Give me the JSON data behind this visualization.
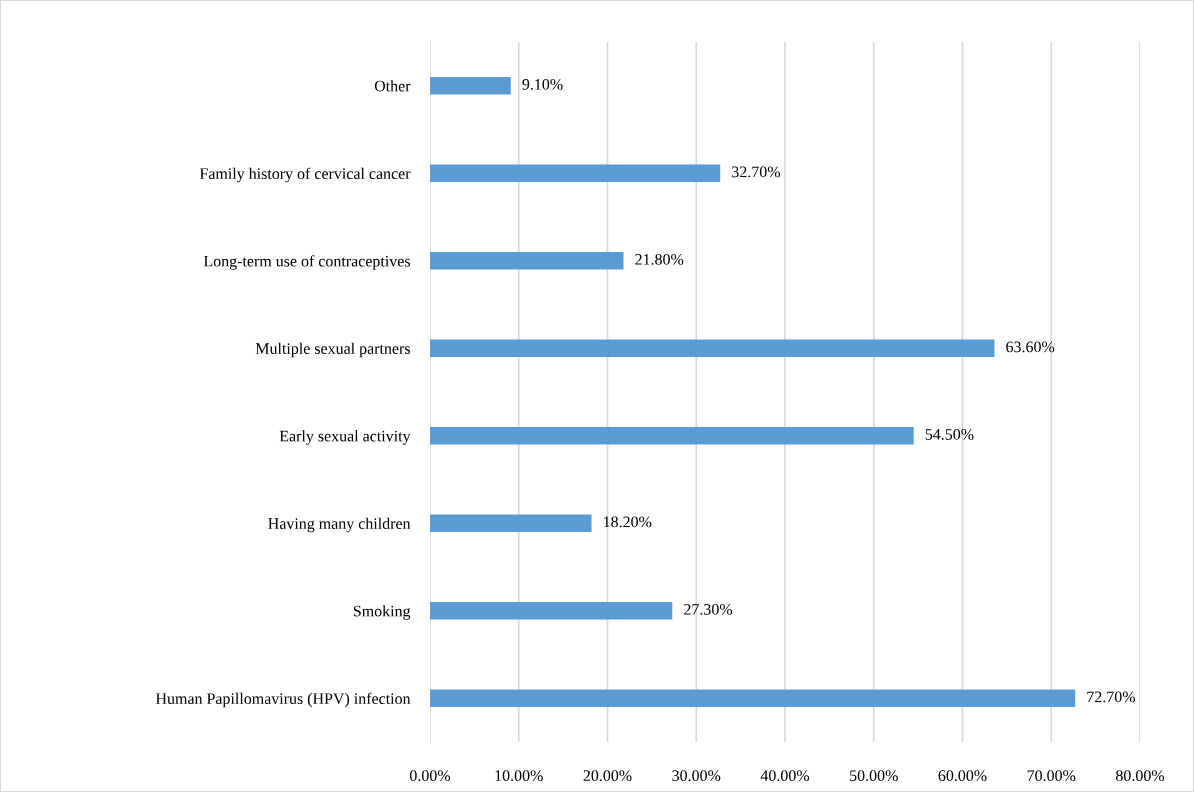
{
  "chart_data": {
    "type": "bar",
    "orientation": "horizontal",
    "categories": [
      "Other",
      "Family history of cervical cancer",
      "Long-term use of contraceptives",
      "Multiple sexual partners",
      "Early sexual activity",
      "Having many children",
      "Smoking",
      "Human Papillomavirus (HPV) infection"
    ],
    "values": [
      9.1,
      32.7,
      21.8,
      63.6,
      54.5,
      18.2,
      27.3,
      72.7
    ],
    "value_labels": [
      "9.10%",
      "32.70%",
      "21.80%",
      "63.60%",
      "54.50%",
      "18.20%",
      "27.30%",
      "72.70%"
    ],
    "color": "#5b9bd5",
    "xlim": [
      0,
      80
    ],
    "xticks": [
      {
        "value": 0,
        "label": "0.00%"
      },
      {
        "value": 10,
        "label": "10.00%"
      },
      {
        "value": 20,
        "label": "20.00%"
      },
      {
        "value": 30,
        "label": "30.00%"
      },
      {
        "value": 40,
        "label": "40.00%"
      },
      {
        "value": 50,
        "label": "50.00%"
      },
      {
        "value": 60,
        "label": "60.00%"
      },
      {
        "value": 70,
        "label": "70.00%"
      },
      {
        "value": 80,
        "label": "80.00%"
      }
    ],
    "grid": "x",
    "legend": false
  }
}
